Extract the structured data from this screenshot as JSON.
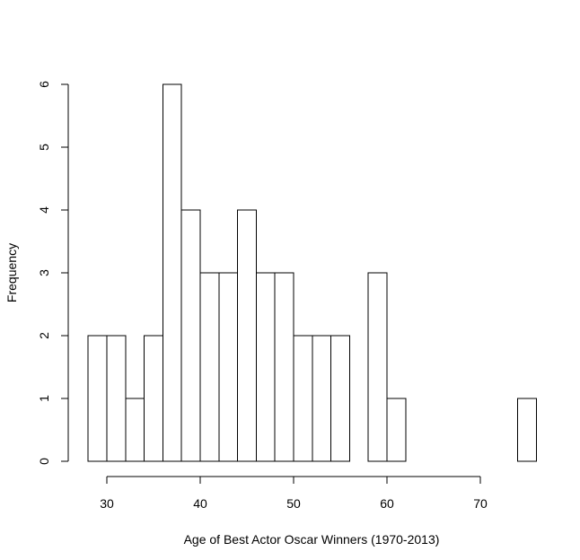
{
  "chart_data": {
    "type": "bar",
    "subtype": "histogram",
    "title": "",
    "xlabel": "Age of Best Actor Oscar Winners (1970-2013)",
    "ylabel": "Frequency",
    "bin_width": 2,
    "bins": [
      {
        "start": 28,
        "end": 30,
        "count": 2
      },
      {
        "start": 30,
        "end": 32,
        "count": 2
      },
      {
        "start": 32,
        "end": 34,
        "count": 1
      },
      {
        "start": 34,
        "end": 36,
        "count": 2
      },
      {
        "start": 36,
        "end": 38,
        "count": 6
      },
      {
        "start": 38,
        "end": 40,
        "count": 4
      },
      {
        "start": 40,
        "end": 42,
        "count": 3
      },
      {
        "start": 42,
        "end": 44,
        "count": 3
      },
      {
        "start": 44,
        "end": 46,
        "count": 4
      },
      {
        "start": 46,
        "end": 48,
        "count": 3
      },
      {
        "start": 48,
        "end": 50,
        "count": 3
      },
      {
        "start": 50,
        "end": 52,
        "count": 2
      },
      {
        "start": 52,
        "end": 54,
        "count": 2
      },
      {
        "start": 54,
        "end": 56,
        "count": 2
      },
      {
        "start": 56,
        "end": 58,
        "count": 0
      },
      {
        "start": 58,
        "end": 60,
        "count": 3
      },
      {
        "start": 60,
        "end": 62,
        "count": 1
      },
      {
        "start": 62,
        "end": 64,
        "count": 0
      },
      {
        "start": 64,
        "end": 66,
        "count": 0
      },
      {
        "start": 66,
        "end": 68,
        "count": 0
      },
      {
        "start": 68,
        "end": 70,
        "count": 0
      },
      {
        "start": 70,
        "end": 72,
        "count": 0
      },
      {
        "start": 72,
        "end": 74,
        "count": 0
      },
      {
        "start": 74,
        "end": 76,
        "count": 1
      }
    ],
    "x_ticks": [
      "30",
      "40",
      "50",
      "60",
      "70"
    ],
    "y_ticks": [
      "0",
      "1",
      "2",
      "3",
      "4",
      "5",
      "6"
    ],
    "xlim": [
      28,
      76
    ],
    "x_axis_range": [
      30,
      70
    ],
    "ylim": [
      0,
      6
    ],
    "grid": false,
    "legend": "none",
    "colors": {
      "bar_fill": "#ffffff",
      "bar_stroke": "#000000",
      "axis": "#000000",
      "background": "#ffffff"
    }
  }
}
